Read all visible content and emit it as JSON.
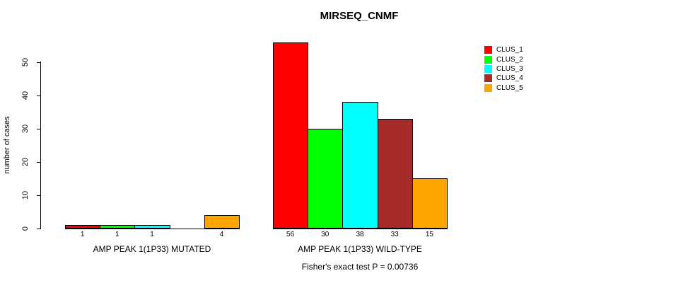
{
  "chart_data": {
    "type": "bar",
    "title": "MIRSEQ_CNMF",
    "ylabel": "number of cases",
    "ylim": [
      0,
      56
    ],
    "yticks": [
      0,
      10,
      20,
      30,
      40,
      50
    ],
    "grid": false,
    "legend_position": "top-right",
    "clusters": [
      {
        "name": "CLUS_1",
        "color": "#FF0000"
      },
      {
        "name": "CLUS_2",
        "color": "#00FF00"
      },
      {
        "name": "CLUS_3",
        "color": "#00FFFF"
      },
      {
        "name": "CLUS_4",
        "color": "#A52A2A"
      },
      {
        "name": "CLUS_5",
        "color": "#FFA500"
      }
    ],
    "groups": [
      {
        "category": "AMP PEAK 1(1P33) MUTATED",
        "values": [
          1,
          1,
          1,
          0,
          4
        ],
        "value_labels": [
          "1",
          "1",
          "1",
          "",
          "4"
        ]
      },
      {
        "category": "AMP PEAK 1(1P33) WILD-TYPE",
        "values": [
          56,
          30,
          38,
          33,
          15
        ],
        "value_labels": [
          "56",
          "30",
          "38",
          "33",
          "15"
        ]
      }
    ],
    "annotation": "Fisher's exact test P = 0.00736"
  }
}
